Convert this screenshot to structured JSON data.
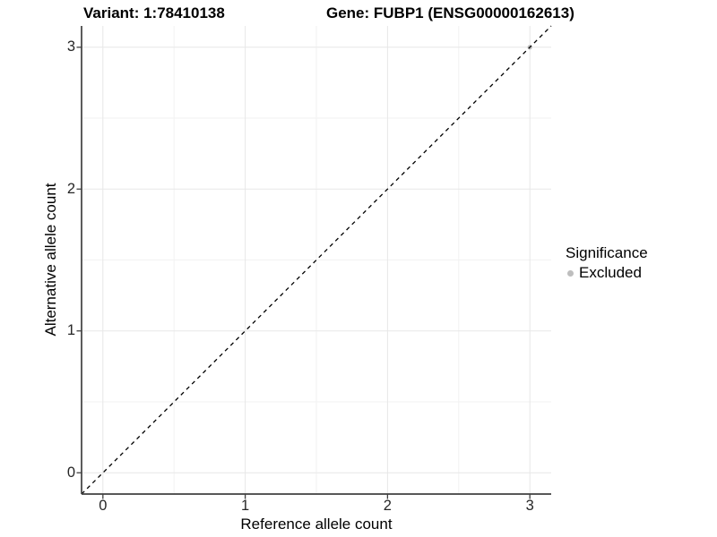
{
  "chart_data": {
    "type": "scatter",
    "title_left": "Variant: 1:78410138",
    "title_right": "Gene: FUBP1 (ENSG00000162613)",
    "xlabel": "Reference allele count",
    "ylabel": "Alternative allele count",
    "xlim": [
      -0.15,
      3.15
    ],
    "ylim": [
      -0.15,
      3.15
    ],
    "xticks": [
      0,
      1,
      2,
      3
    ],
    "yticks": [
      0,
      1,
      2,
      3
    ],
    "xminor": [
      0.5,
      1.5,
      2.5
    ],
    "yminor": [
      0.5,
      1.5,
      2.5
    ],
    "grid": "major-and-minor",
    "identity_line": {
      "slope": 1,
      "intercept": 0,
      "style": "dashed",
      "color": "#000000"
    },
    "series": [
      {
        "name": "Excluded",
        "color": "#bebebe",
        "points": [
          {
            "x": 3,
            "y": 3
          }
        ]
      }
    ],
    "legend": {
      "title": "Significance",
      "position": "right",
      "entries": [
        {
          "label": "Excluded",
          "color": "#bebebe"
        }
      ]
    },
    "colors": {
      "grid_major": "#e7e7e7",
      "grid_minor": "#f2f2f2",
      "axis_line": "#404040",
      "tick_text": "#262626",
      "background": "#ffffff"
    }
  }
}
